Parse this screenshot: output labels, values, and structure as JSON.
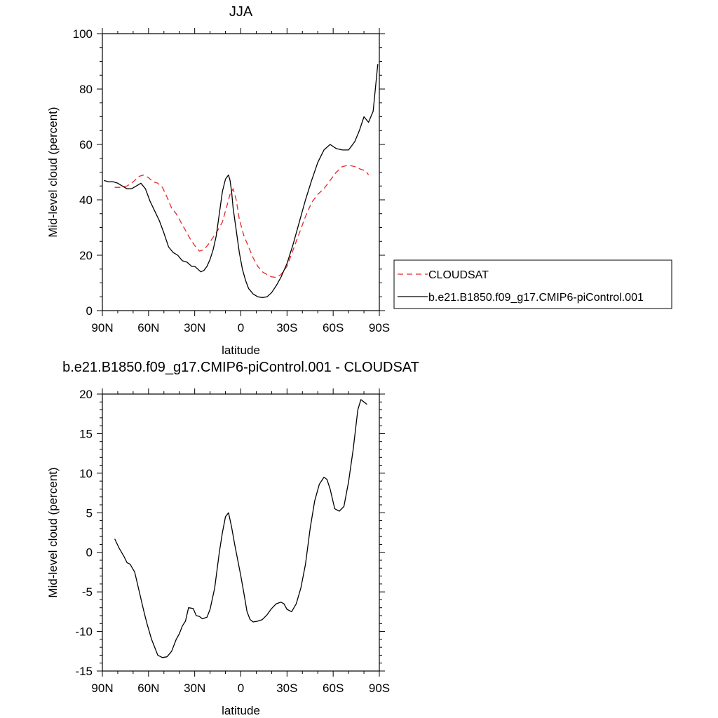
{
  "chart_data": [
    {
      "type": "line",
      "title": "JJA",
      "xlabel": "latitude",
      "ylabel": "Mid-level cloud (percent)",
      "xlim": [
        90,
        -90
      ],
      "ylim": [
        0,
        100
      ],
      "xticks": [
        {
          "value": 90,
          "label": "90N"
        },
        {
          "value": 60,
          "label": "60N"
        },
        {
          "value": 30,
          "label": "30N"
        },
        {
          "value": 0,
          "label": "0"
        },
        {
          "value": -30,
          "label": "30S"
        },
        {
          "value": -60,
          "label": "60S"
        },
        {
          "value": -90,
          "label": "90S"
        }
      ],
      "yticks": [
        0,
        20,
        40,
        60,
        80,
        100
      ],
      "grid": false,
      "legend_position": "right",
      "series": [
        {
          "name": "CLOUDSAT",
          "color": "#e8262a",
          "dash": "dashed",
          "x": [
            82,
            78,
            74,
            70,
            66,
            63,
            60,
            57,
            54,
            51,
            48,
            45,
            42,
            39,
            36,
            33,
            30,
            27,
            24,
            21,
            18,
            15,
            12,
            9,
            7,
            5,
            3,
            1,
            -2,
            -5,
            -8,
            -11,
            -14,
            -17,
            -20,
            -23,
            -26,
            -30,
            -34,
            -38,
            -42,
            -46,
            -50,
            -54,
            -58,
            -62,
            -66,
            -70,
            -74,
            -78,
            -81,
            -83
          ],
          "y": [
            44.5,
            44.5,
            45,
            46.5,
            48.5,
            49,
            48,
            46.5,
            46,
            44.5,
            41,
            37,
            35,
            32,
            29,
            26,
            23.5,
            21.5,
            22,
            24,
            26.5,
            29,
            32,
            38,
            42,
            44,
            40,
            33,
            27,
            23,
            19,
            16,
            14,
            13,
            12.2,
            12,
            13,
            16,
            22,
            28,
            34,
            39,
            42,
            44,
            47,
            50,
            52,
            52.5,
            52,
            51,
            50.5,
            49
          ]
        },
        {
          "name": "b.e21.B1850.f09_g17.CMIP6-piControl.001",
          "color": "#000000",
          "dash": "solid",
          "x": [
            89,
            86,
            83,
            80,
            77,
            74,
            71,
            68,
            65,
            62,
            59,
            56,
            53,
            50,
            47,
            44,
            41,
            38,
            35,
            32,
            30,
            28,
            26,
            24,
            22,
            20,
            18,
            16,
            14,
            12,
            10,
            8,
            7,
            6,
            5,
            3,
            1,
            -1,
            -3,
            -5,
            -8,
            -11,
            -14,
            -17,
            -20,
            -23,
            -26,
            -30,
            -34,
            -38,
            -42,
            -46,
            -50,
            -54,
            -58,
            -62,
            -66,
            -70,
            -74,
            -77,
            -80,
            -83,
            -86,
            -89
          ],
          "y": [
            47,
            46.5,
            46.5,
            46,
            45,
            44,
            44,
            45,
            46,
            44,
            39.5,
            36,
            32.5,
            28,
            23,
            21,
            20,
            18,
            17.5,
            16,
            16,
            15,
            14,
            14.5,
            16,
            18.5,
            22,
            27,
            35,
            43,
            47.5,
            49,
            47,
            43,
            37,
            29,
            21,
            15,
            11,
            8,
            6,
            5,
            4.7,
            5,
            6.5,
            9,
            12,
            17,
            24,
            32,
            40,
            47,
            53.5,
            58,
            60,
            58.5,
            58,
            58,
            61,
            65,
            70,
            68,
            72,
            89
          ]
        }
      ]
    },
    {
      "type": "line",
      "title": "b.e21.B1850.f09_g17.CMIP6-piControl.001 - CLOUDSAT",
      "xlabel": "latitude",
      "ylabel": "Mid-level cloud (percent)",
      "xlim": [
        90,
        -90
      ],
      "ylim": [
        -15,
        20
      ],
      "xticks": [
        {
          "value": 90,
          "label": "90N"
        },
        {
          "value": 60,
          "label": "60N"
        },
        {
          "value": 30,
          "label": "30N"
        },
        {
          "value": 0,
          "label": "0"
        },
        {
          "value": -30,
          "label": "30S"
        },
        {
          "value": -60,
          "label": "60S"
        },
        {
          "value": -90,
          "label": "90S"
        }
      ],
      "yticks": [
        -15,
        -10,
        -5,
        0,
        5,
        10,
        15,
        20
      ],
      "grid": false,
      "series": [
        {
          "color": "#000000",
          "dash": "solid",
          "x": [
            82,
            79,
            76,
            74,
            72,
            69,
            66,
            63,
            61,
            58,
            56,
            54,
            51,
            48,
            45,
            42,
            40,
            38,
            36,
            34,
            31,
            29,
            27,
            25,
            22,
            20,
            17,
            14,
            12,
            10,
            8,
            6,
            4,
            2,
            0,
            -2,
            -4,
            -6,
            -8,
            -11,
            -14,
            -17,
            -20,
            -23,
            -26,
            -28,
            -30,
            -33,
            -36,
            -39,
            -42,
            -45,
            -48,
            -51,
            -54,
            -56,
            -58,
            -61,
            -64,
            -67,
            -70,
            -73,
            -76,
            -78,
            -80,
            -82
          ],
          "y": [
            1.7,
            0.5,
            -0.5,
            -1.3,
            -1.5,
            -2.5,
            -5,
            -7.5,
            -9,
            -11,
            -12,
            -13,
            -13.3,
            -13.2,
            -12.5,
            -11,
            -10.3,
            -9.3,
            -8.7,
            -7,
            -7.1,
            -8,
            -8.1,
            -8.4,
            -8.2,
            -7.2,
            -4.5,
            0,
            2.5,
            4.5,
            5,
            3.2,
            1,
            -1,
            -3,
            -5.2,
            -7.5,
            -8.5,
            -8.8,
            -8.7,
            -8.5,
            -7.9,
            -7.1,
            -6.5,
            -6.3,
            -6.5,
            -7.2,
            -7.5,
            -6.5,
            -4.5,
            -1.5,
            3,
            6.5,
            8.6,
            9.5,
            9.2,
            8,
            5.5,
            5.2,
            5.8,
            8.9,
            13,
            18,
            19.3,
            19,
            18.7
          ]
        }
      ]
    }
  ],
  "legend": {
    "items": [
      {
        "label": "CLOUDSAT",
        "color": "#e8262a",
        "dash": "dashed"
      },
      {
        "label": "b.e21.B1850.f09_g17.CMIP6-piControl.001",
        "color": "#000000",
        "dash": "solid"
      }
    ]
  }
}
